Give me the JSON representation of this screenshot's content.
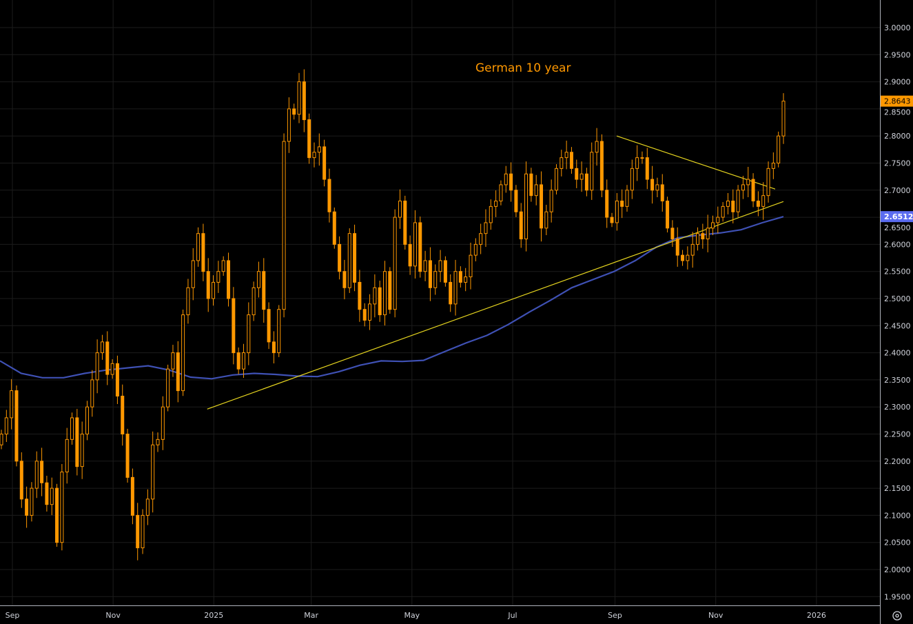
{
  "chart_data": {
    "type": "candlestick",
    "title": "German 10 year",
    "colors": {
      "candle": "#ff9800",
      "moving_average": "#3f51b5",
      "trendline": "#e6d51f",
      "background": "#000000",
      "grid": "#1c1c1c",
      "last_price_label": "#ff9800",
      "ma_label": "#5b6cf0"
    },
    "ylim": [
      1.93,
      3.05
    ],
    "yticks": [
      "1.9500",
      "2.0000",
      "2.0500",
      "2.1000",
      "2.1500",
      "2.2000",
      "2.2500",
      "2.3000",
      "2.3500",
      "2.4000",
      "2.4500",
      "2.5000",
      "2.5500",
      "2.6000",
      "2.6500",
      "2.7000",
      "2.7500",
      "2.8000",
      "2.8500",
      "2.9000",
      "2.9500",
      "3.0000"
    ],
    "xticks": [
      {
        "label": "Sep",
        "date": "2024-09-01"
      },
      {
        "label": "Nov",
        "date": "2024-11-01"
      },
      {
        "label": "2025",
        "date": "2025-01-01"
      },
      {
        "label": "Mar",
        "date": "2025-03-01"
      },
      {
        "label": "May",
        "date": "2025-05-01"
      },
      {
        "label": "Jul",
        "date": "2025-07-01"
      },
      {
        "label": "Sep",
        "date": "2025-09-01"
      },
      {
        "label": "Nov",
        "date": "2025-11-01"
      },
      {
        "label": "2026",
        "date": "2026-01-01"
      }
    ],
    "grid": true,
    "closes": [
      2.25,
      2.28,
      2.33,
      2.2,
      2.13,
      2.1,
      2.15,
      2.2,
      2.16,
      2.12,
      2.15,
      2.05,
      2.18,
      2.24,
      2.28,
      2.19,
      2.25,
      2.3,
      2.35,
      2.4,
      2.42,
      2.36,
      2.38,
      2.32,
      2.25,
      2.17,
      2.1,
      2.04,
      2.1,
      2.13,
      2.23,
      2.24,
      2.3,
      2.37,
      2.4,
      2.33,
      2.47,
      2.52,
      2.57,
      2.62,
      2.55,
      2.5,
      2.53,
      2.55,
      2.57,
      2.5,
      2.4,
      2.37,
      2.4,
      2.47,
      2.52,
      2.55,
      2.48,
      2.42,
      2.4,
      2.48,
      2.79,
      2.85,
      2.84,
      2.9,
      2.83,
      2.76,
      2.77,
      2.78,
      2.72,
      2.66,
      2.6,
      2.55,
      2.52,
      2.62,
      2.53,
      2.48,
      2.46,
      2.49,
      2.52,
      2.47,
      2.55,
      2.48,
      2.65,
      2.68,
      2.6,
      2.56,
      2.64,
      2.55,
      2.57,
      2.52,
      2.55,
      2.57,
      2.53,
      2.49,
      2.55,
      2.53,
      2.54,
      2.58,
      2.6,
      2.62,
      2.64,
      2.67,
      2.68,
      2.71,
      2.73,
      2.7,
      2.66,
      2.61,
      2.73,
      2.69,
      2.71,
      2.63,
      2.66,
      2.7,
      2.74,
      2.76,
      2.77,
      2.74,
      2.72,
      2.73,
      2.7,
      2.77,
      2.79,
      2.7,
      2.65,
      2.64,
      2.68,
      2.67,
      2.7,
      2.74,
      2.76,
      2.76,
      2.72,
      2.7,
      2.71,
      2.68,
      2.63,
      2.61,
      2.58,
      2.57,
      2.58,
      2.6,
      2.62,
      2.61,
      2.63,
      2.64,
      2.65,
      2.67,
      2.68,
      2.66,
      2.7,
      2.71,
      2.72,
      2.68,
      2.67,
      2.69,
      2.74,
      2.75,
      2.8,
      2.8643
    ],
    "moving_average": [
      2.385,
      2.362,
      2.354,
      2.354,
      2.362,
      2.368,
      2.372,
      2.376,
      2.368,
      2.355,
      2.352,
      2.359,
      2.362,
      2.36,
      2.357,
      2.356,
      2.365,
      2.377,
      2.385,
      2.384,
      2.386,
      2.402,
      2.418,
      2.432,
      2.452,
      2.475,
      2.497,
      2.52,
      2.535,
      2.55,
      2.57,
      2.595,
      2.612,
      2.617,
      2.621,
      2.627,
      2.64,
      2.6512
    ],
    "trendlines": [
      {
        "from": {
          "date": "2024-12-28",
          "value": 2.296
        },
        "to": {
          "date": "2025-12-12",
          "value": 2.679
        }
      },
      {
        "from": {
          "date": "2025-09-02",
          "value": 2.8
        },
        "to": {
          "date": "2025-12-07",
          "value": 2.702
        }
      }
    ],
    "last_price": "2.8643",
    "ma_last": "2.6512"
  },
  "axis": {
    "settings_icon": "gear-icon"
  }
}
